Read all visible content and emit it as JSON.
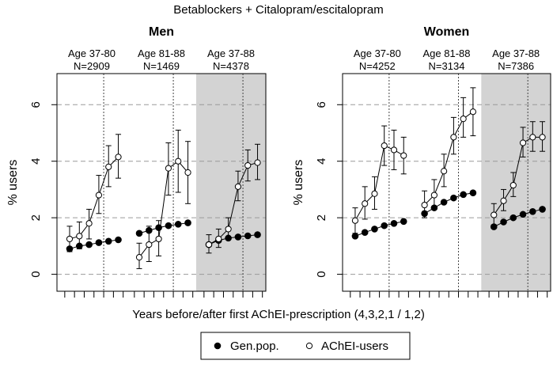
{
  "chart_data": {
    "type": "line",
    "title": "Betablockers + Citalopram/escitalopram",
    "xlabel": "Years before/after first AChEI-prescription (4,3,2,1 / 1,2)",
    "ylabel": "% users",
    "ylim": [
      -0.6,
      7.1
    ],
    "yticks": [
      0,
      2,
      4,
      6
    ],
    "x_positions": [
      1,
      2,
      3,
      4,
      5,
      6
    ],
    "legend": {
      "position": "bottom-center",
      "entries": [
        {
          "label": "Gen.pop.",
          "marker": "filled-circle"
        },
        {
          "label": "AChEI-users",
          "marker": "open-circle"
        }
      ]
    },
    "panels": [
      {
        "title": "Men",
        "groups": [
          {
            "label": "Age 37-80",
            "n": "N=2909",
            "shaded": false,
            "series": [
              {
                "name": "Gen.pop.",
                "values": [
                  0.9,
                  1.0,
                  1.05,
                  1.12,
                  1.17,
                  1.22
                ],
                "lower": null,
                "upper": null
              },
              {
                "name": "AChEI-users",
                "values": [
                  1.25,
                  1.35,
                  1.8,
                  2.8,
                  3.8,
                  4.15
                ],
                "lower": [
                  0.8,
                  0.9,
                  1.25,
                  2.15,
                  3.1,
                  3.4
                ],
                "upper": [
                  1.7,
                  1.85,
                  2.3,
                  3.5,
                  4.55,
                  4.95
                ]
              }
            ]
          },
          {
            "label": "Age 81-88",
            "n": "N=1469",
            "shaded": false,
            "series": [
              {
                "name": "Gen.pop.",
                "values": [
                  1.45,
                  1.55,
                  1.65,
                  1.72,
                  1.77,
                  1.82
                ],
                "lower": null,
                "upper": null
              },
              {
                "name": "AChEI-users",
                "values": [
                  0.6,
                  1.05,
                  1.25,
                  3.75,
                  4.0,
                  3.6
                ],
                "lower": [
                  0.2,
                  0.45,
                  0.65,
                  2.8,
                  2.9,
                  2.5
                ],
                "upper": [
                  1.1,
                  1.7,
                  1.9,
                  4.65,
                  5.1,
                  4.7
                ]
              }
            ]
          },
          {
            "label": "Age 37-88",
            "n": "N=4378",
            "shaded": true,
            "series": [
              {
                "name": "Gen.pop.",
                "values": [
                  1.05,
                  1.2,
                  1.28,
                  1.32,
                  1.36,
                  1.4
                ],
                "lower": null,
                "upper": null
              },
              {
                "name": "AChEI-users",
                "values": [
                  1.05,
                  1.25,
                  1.6,
                  3.1,
                  3.85,
                  3.95
                ],
                "lower": [
                  0.75,
                  0.95,
                  1.25,
                  2.6,
                  3.3,
                  3.35
                ],
                "upper": [
                  1.4,
                  1.6,
                  2.0,
                  3.65,
                  4.4,
                  4.6
                ]
              }
            ]
          }
        ]
      },
      {
        "title": "Women",
        "groups": [
          {
            "label": "Age 37-80",
            "n": "N=4252",
            "shaded": false,
            "series": [
              {
                "name": "Gen.pop.",
                "values": [
                  1.35,
                  1.48,
                  1.6,
                  1.72,
                  1.8,
                  1.87
                ],
                "lower": null,
                "upper": null
              },
              {
                "name": "AChEI-users",
                "values": [
                  1.9,
                  2.5,
                  2.85,
                  4.55,
                  4.4,
                  4.2
                ],
                "lower": [
                  1.45,
                  1.95,
                  2.3,
                  3.85,
                  3.7,
                  3.55
                ],
                "upper": [
                  2.35,
                  3.1,
                  3.45,
                  5.25,
                  5.1,
                  4.85
                ]
              }
            ]
          },
          {
            "label": "Age 81-88",
            "n": "N=3134",
            "shaded": false,
            "series": [
              {
                "name": "Gen.pop.",
                "values": [
                  2.15,
                  2.35,
                  2.55,
                  2.7,
                  2.82,
                  2.88
                ],
                "lower": null,
                "upper": null
              },
              {
                "name": "AChEI-users",
                "values": [
                  2.45,
                  2.8,
                  3.65,
                  4.85,
                  5.5,
                  5.75
                ],
                "lower": [
                  2.0,
                  2.3,
                  3.1,
                  4.25,
                  4.85,
                  4.9
                ],
                "upper": [
                  2.95,
                  3.35,
                  4.25,
                  5.55,
                  6.25,
                  6.6
                ]
              }
            ]
          },
          {
            "label": "Age 37-88",
            "n": "N=7386",
            "shaded": true,
            "series": [
              {
                "name": "Gen.pop.",
                "values": [
                  1.68,
                  1.85,
                  2.0,
                  2.12,
                  2.22,
                  2.3
                ],
                "lower": null,
                "upper": null
              },
              {
                "name": "AChEI-users",
                "values": [
                  2.1,
                  2.6,
                  3.15,
                  4.65,
                  4.85,
                  4.85
                ],
                "lower": [
                  1.75,
                  2.25,
                  2.75,
                  4.15,
                  4.35,
                  4.35
                ],
                "upper": [
                  2.5,
                  3.0,
                  3.6,
                  5.2,
                  5.4,
                  5.4
                ]
              }
            ]
          }
        ]
      }
    ]
  }
}
